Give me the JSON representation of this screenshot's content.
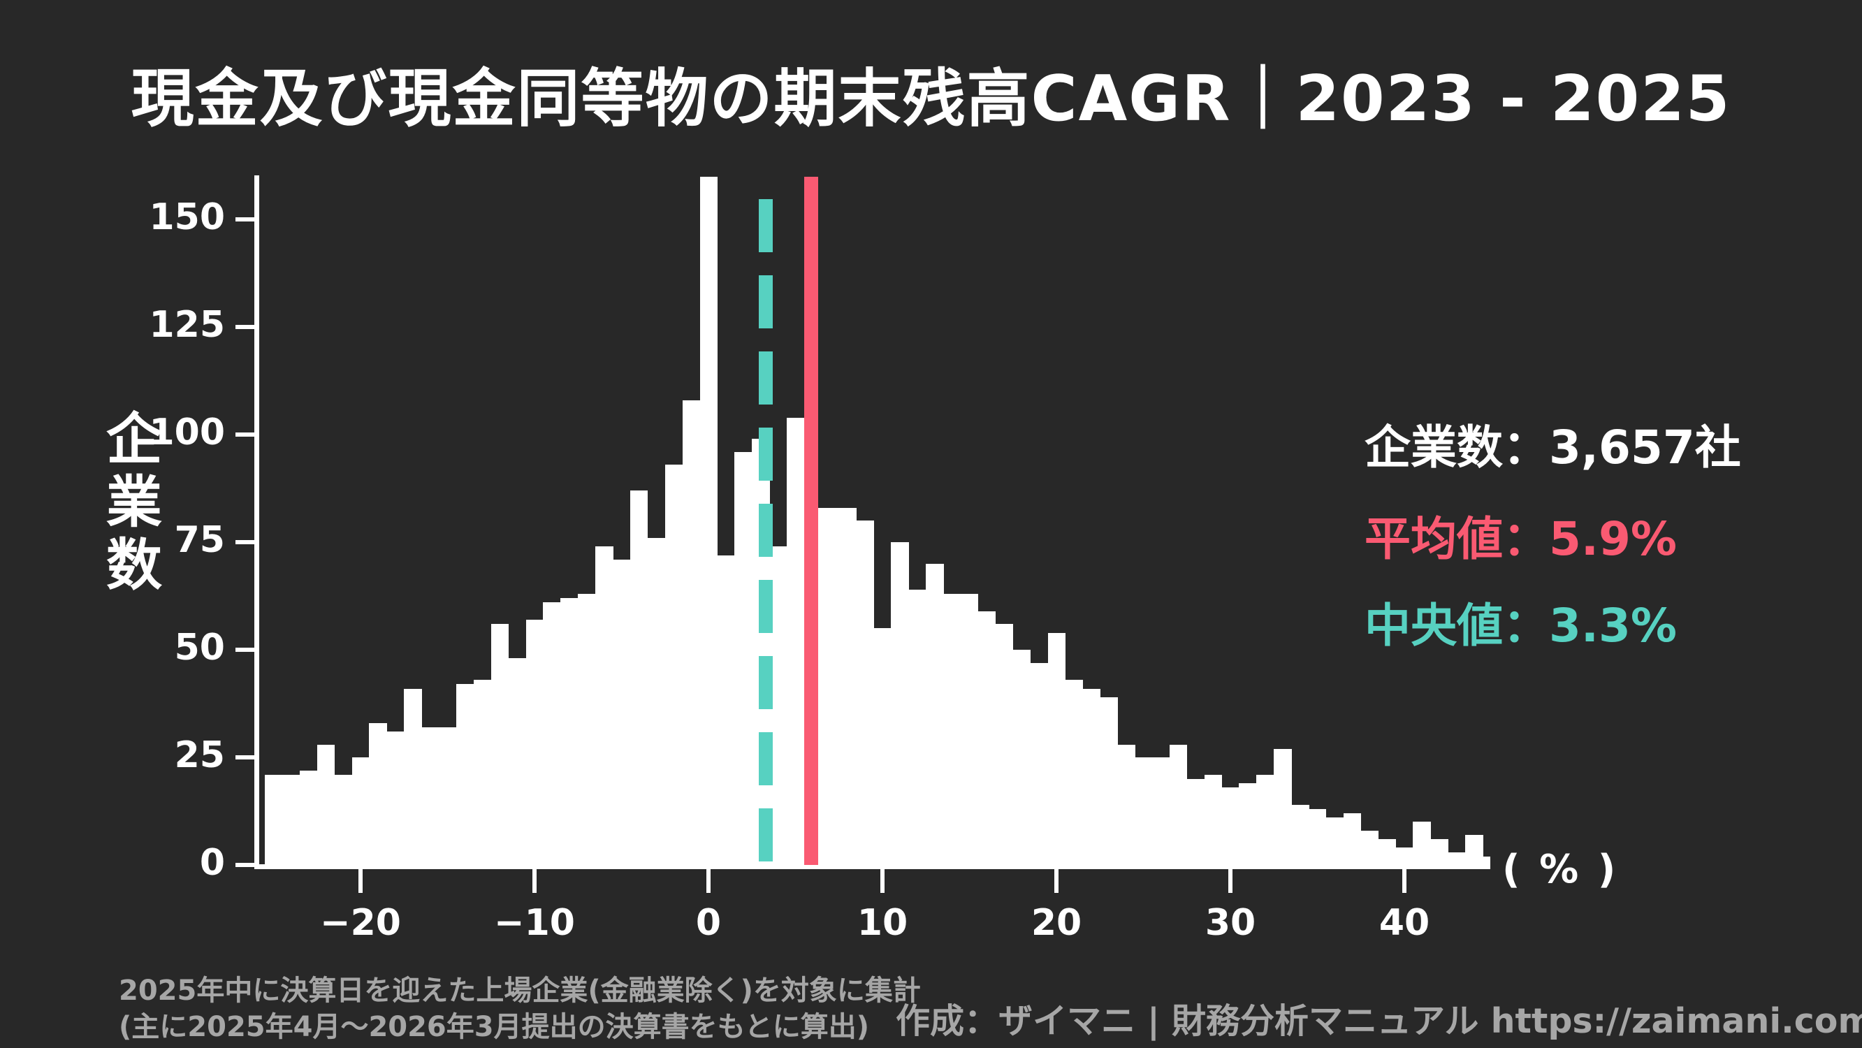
{
  "title": "現金及び現金同等物の期末残高CAGR｜2023 - 2025",
  "colors": {
    "background": "#282828",
    "bar": "#ffffff",
    "mean": "#fa5a72",
    "median": "#57d1c1",
    "text": "#ffffff",
    "footnote_text": "#a6a6a6"
  },
  "legend": {
    "separator": "：",
    "rows": [
      {
        "label": "企業数",
        "value": "3,657社",
        "color": "#ffffff"
      },
      {
        "label": "平均値",
        "value": "5.9%",
        "color": "#fa5a72"
      },
      {
        "label": "中央値",
        "value": "3.3%",
        "color": "#57d1c1"
      }
    ]
  },
  "footnote": {
    "line1": "2025年中に決算日を迎えた上場企業(金融業除く)を対象に集計",
    "line2": "(主に2025年4月〜2026年3月提出の決算書をもとに算出)"
  },
  "credit": "作成：ザイマニ | 財務分析マニュアル https://zaimani.com/",
  "chart_data": {
    "type": "bar",
    "subtype": "histogram",
    "title": "現金及び現金同等物の期末残高CAGR｜2023 - 2025",
    "ylabel": "企業数",
    "x_unit_label": "( % )",
    "companies_total": 3657,
    "mean_pct": 5.9,
    "median_pct": 3.3,
    "bin_width_pct": 1,
    "x_start": -25,
    "x": [
      -25,
      -24,
      -23,
      -22,
      -21,
      -20,
      -19,
      -18,
      -17,
      -16,
      -15,
      -14,
      -13,
      -12,
      -11,
      -10,
      -9,
      -8,
      -7,
      -6,
      -5,
      -4,
      -3,
      -2,
      -1,
      0,
      1,
      2,
      3,
      4,
      5,
      6,
      7,
      8,
      9,
      10,
      11,
      12,
      13,
      14,
      15,
      16,
      17,
      18,
      19,
      20,
      21,
      22,
      23,
      24,
      25,
      26,
      27,
      28,
      29,
      30,
      31,
      32,
      33,
      34,
      35,
      36,
      37,
      38,
      39,
      40,
      41,
      42,
      43,
      44,
      45
    ],
    "values": [
      21,
      21,
      22,
      28,
      21,
      25,
      33,
      31,
      41,
      32,
      32,
      42,
      43,
      56,
      48,
      57,
      61,
      62,
      63,
      74,
      71,
      87,
      76,
      93,
      108,
      160,
      72,
      96,
      99,
      74,
      104,
      83,
      83,
      83,
      80,
      55,
      75,
      64,
      70,
      63,
      63,
      59,
      56,
      50,
      47,
      54,
      43,
      41,
      39,
      28,
      25,
      25,
      28,
      20,
      21,
      18,
      19,
      21,
      27,
      14,
      13,
      11,
      12,
      8,
      6,
      4,
      10,
      6,
      3,
      7,
      2
    ],
    "top_bin_clipped": true,
    "yticks": [
      0,
      25,
      50,
      75,
      100,
      125,
      150
    ],
    "xticks": [
      -20,
      -10,
      0,
      10,
      20,
      30,
      40
    ],
    "xtick_labels": [
      "−20",
      "−10",
      "0",
      "10",
      "20",
      "30",
      "40"
    ],
    "ylim": [
      0,
      160
    ],
    "xlim": [
      -25.8,
      45
    ],
    "grid": false,
    "legend_position": "right"
  }
}
